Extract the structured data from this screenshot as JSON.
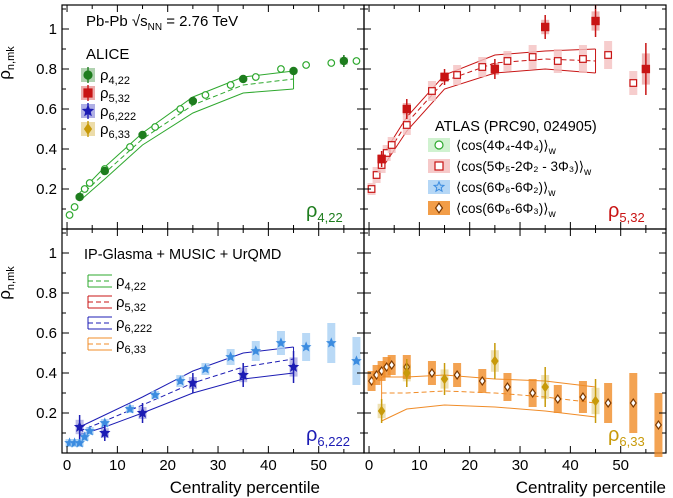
{
  "figure": {
    "y_axis_label": "ρ",
    "y_axis_sub": "n,mk",
    "x_axis_label": "Centrality percentile",
    "collision": "Pb-Pb",
    "energy_prefix": "√s",
    "energy_sub": "NN",
    "energy_value": "= 2.76 TeV",
    "alice_label": "ALICE",
    "atlas_label": "ATLAS (PRC90, 024905)",
    "model_label": "IP-Glasma + MUSIC + UrQMD"
  },
  "alice_legend": [
    {
      "base": "ρ",
      "sub": "4,22",
      "color": "#1e7d1e",
      "marker": "circle"
    },
    {
      "base": "ρ",
      "sub": "5,32",
      "color": "#c81414",
      "marker": "square"
    },
    {
      "base": "ρ",
      "sub": "6,222",
      "color": "#1c1cb4",
      "marker": "star"
    },
    {
      "base": "ρ",
      "sub": "6,33",
      "color": "#c89a0a",
      "marker": "diamond"
    }
  ],
  "atlas_legend": [
    {
      "text": "⟨cos(4Φ₄-4Φ₄)⟩",
      "sub": "w",
      "marker": "circle",
      "color": "#2ea82e",
      "fill": "#c8f0c8"
    },
    {
      "text": "⟨cos(5Φ₅-2Φ₂ - 3Φ₃)⟩",
      "sub": "w",
      "marker": "square",
      "color": "#c81414",
      "fill": "#f4c0c0"
    },
    {
      "text": "⟨cos(6Φ₆-6Φ₂)⟩",
      "sub": "w",
      "marker": "star",
      "color": "#3c8ce0",
      "fill": "#a8d0f4"
    },
    {
      "text": "⟨cos(6Φ₆-6Φ₃)⟩",
      "sub": "w",
      "marker": "diamond",
      "color": "#7a3800",
      "fill": "#f08c28"
    }
  ],
  "model_legend": [
    {
      "base": "ρ",
      "sub": "4,22",
      "color": "#2ea82e"
    },
    {
      "base": "ρ",
      "sub": "5,32",
      "color": "#c81414"
    },
    {
      "base": "ρ",
      "sub": "6,222",
      "color": "#1c1cb4"
    },
    {
      "base": "ρ",
      "sub": "6,33",
      "color": "#f08c28"
    }
  ],
  "chart_data": [
    {
      "type": "scatter",
      "panel": "top-left",
      "label_base": "ρ",
      "label_sub": "4,22",
      "label_color": "#1e7d1e",
      "xlim": [
        -1,
        59
      ],
      "ylim": [
        0,
        1.12
      ],
      "x_ticks": [
        0,
        10,
        20,
        30,
        40,
        50
      ],
      "y_ticks": [
        0.2,
        0.4,
        0.6,
        0.8,
        1
      ],
      "colors": {
        "alice": "#1e7d1e",
        "atlas": "#2ea82e",
        "atlas_fill": "#c8f0c8",
        "model": "#2ea82e"
      },
      "alice": [
        {
          "x": 2.5,
          "y": 0.16,
          "err": 0.02
        },
        {
          "x": 7.5,
          "y": 0.29,
          "err": 0.02
        },
        {
          "x": 15,
          "y": 0.47,
          "err": 0.02
        },
        {
          "x": 25,
          "y": 0.64,
          "err": 0.02
        },
        {
          "x": 35,
          "y": 0.75,
          "err": 0.02
        },
        {
          "x": 45,
          "y": 0.79,
          "err": 0.02
        },
        {
          "x": 55,
          "y": 0.84,
          "err": 0.03
        }
      ],
      "atlas": [
        {
          "x": 0.5,
          "y": 0.07,
          "sys": 0.01
        },
        {
          "x": 1.5,
          "y": 0.11,
          "sys": 0.01
        },
        {
          "x": 2.5,
          "y": 0.16,
          "sys": 0.01
        },
        {
          "x": 3.5,
          "y": 0.2,
          "sys": 0.01
        },
        {
          "x": 4.5,
          "y": 0.23,
          "sys": 0.01
        },
        {
          "x": 7.5,
          "y": 0.3,
          "sys": 0.01
        },
        {
          "x": 12.5,
          "y": 0.41,
          "sys": 0.01
        },
        {
          "x": 17.5,
          "y": 0.51,
          "sys": 0.01
        },
        {
          "x": 22.5,
          "y": 0.6,
          "sys": 0.01
        },
        {
          "x": 27.5,
          "y": 0.67,
          "sys": 0.01
        },
        {
          "x": 32.5,
          "y": 0.72,
          "sys": 0.01
        },
        {
          "x": 37.5,
          "y": 0.76,
          "sys": 0.01
        },
        {
          "x": 42.5,
          "y": 0.8,
          "sys": 0.01
        },
        {
          "x": 47.5,
          "y": 0.82,
          "sys": 0.01
        },
        {
          "x": 52.5,
          "y": 0.83,
          "sys": 0.01
        },
        {
          "x": 57.5,
          "y": 0.84,
          "sys": 0.01
        }
      ],
      "model": {
        "x": [
          2.5,
          7.5,
          15,
          25,
          35,
          45
        ],
        "center": [
          0.16,
          0.28,
          0.45,
          0.62,
          0.72,
          0.75
        ],
        "upper": [
          0.18,
          0.31,
          0.48,
          0.66,
          0.76,
          0.79
        ],
        "lower": [
          0.14,
          0.25,
          0.42,
          0.58,
          0.68,
          0.7
        ]
      }
    },
    {
      "type": "scatter",
      "panel": "top-right",
      "label_base": "ρ",
      "label_sub": "5,32",
      "label_color": "#c81414",
      "xlim": [
        -1,
        59
      ],
      "ylim": [
        0,
        1.12
      ],
      "x_ticks": [
        0,
        10,
        20,
        30,
        40,
        50
      ],
      "y_ticks": [
        0.2,
        0.4,
        0.6,
        0.8,
        1
      ],
      "colors": {
        "alice": "#c81414",
        "atlas": "#c81414",
        "atlas_fill": "#f4c0c0",
        "model": "#c81414"
      },
      "alice": [
        {
          "x": 2.5,
          "y": 0.35,
          "err": 0.04
        },
        {
          "x": 7.5,
          "y": 0.6,
          "err": 0.05
        },
        {
          "x": 15,
          "y": 0.76,
          "err": 0.04
        },
        {
          "x": 25,
          "y": 0.8,
          "err": 0.05
        },
        {
          "x": 35,
          "y": 1.01,
          "err": 0.06
        },
        {
          "x": 45,
          "y": 1.04,
          "err": 0.08
        },
        {
          "x": 55,
          "y": 0.8,
          "err": 0.13
        }
      ],
      "atlas": [
        {
          "x": 0.5,
          "y": 0.2,
          "sys": 0.03
        },
        {
          "x": 1.5,
          "y": 0.27,
          "sys": 0.04
        },
        {
          "x": 2.5,
          "y": 0.32,
          "sys": 0.04
        },
        {
          "x": 3.5,
          "y": 0.38,
          "sys": 0.04
        },
        {
          "x": 4.5,
          "y": 0.42,
          "sys": 0.04
        },
        {
          "x": 7.5,
          "y": 0.52,
          "sys": 0.05
        },
        {
          "x": 12.5,
          "y": 0.69,
          "sys": 0.05
        },
        {
          "x": 17.5,
          "y": 0.77,
          "sys": 0.05
        },
        {
          "x": 22.5,
          "y": 0.81,
          "sys": 0.05
        },
        {
          "x": 27.5,
          "y": 0.84,
          "sys": 0.05
        },
        {
          "x": 32.5,
          "y": 0.86,
          "sys": 0.06
        },
        {
          "x": 37.5,
          "y": 0.84,
          "sys": 0.06
        },
        {
          "x": 42.5,
          "y": 0.85,
          "sys": 0.07
        },
        {
          "x": 47.5,
          "y": 0.87,
          "sys": 0.07
        },
        {
          "x": 52.5,
          "y": 0.73,
          "sys": 0.06
        }
      ],
      "model": {
        "x": [
          2.5,
          7.5,
          15,
          25,
          35,
          45
        ],
        "center": [
          0.33,
          0.53,
          0.74,
          0.83,
          0.85,
          0.84
        ],
        "upper": [
          0.36,
          0.56,
          0.77,
          0.87,
          0.89,
          0.9
        ],
        "lower": [
          0.3,
          0.49,
          0.7,
          0.78,
          0.8,
          0.78
        ]
      }
    },
    {
      "type": "scatter",
      "panel": "bottom-left",
      "label_base": "ρ",
      "label_sub": "6,222",
      "label_color": "#1c1cb4",
      "xlim": [
        -1,
        59
      ],
      "ylim": [
        0,
        1.12
      ],
      "x_ticks": [
        0,
        10,
        20,
        30,
        40,
        50
      ],
      "y_ticks": [
        0.2,
        0.4,
        0.6,
        0.8,
        1
      ],
      "colors": {
        "alice": "#1c1cb4",
        "atlas": "#3c8ce0",
        "atlas_fill": "#a8d0f4",
        "model": "#1c1cb4"
      },
      "alice": [
        {
          "x": 2.5,
          "y": 0.13,
          "err": 0.06
        },
        {
          "x": 7.5,
          "y": 0.1,
          "err": 0.04
        },
        {
          "x": 15,
          "y": 0.2,
          "err": 0.05
        },
        {
          "x": 25,
          "y": 0.35,
          "err": 0.05
        },
        {
          "x": 35,
          "y": 0.39,
          "err": 0.06
        },
        {
          "x": 45,
          "y": 0.43,
          "err": 0.08
        }
      ],
      "atlas": [
        {
          "x": 0.5,
          "y": 0.05,
          "sys": 0.02
        },
        {
          "x": 1.5,
          "y": 0.05,
          "sys": 0.02
        },
        {
          "x": 2.5,
          "y": 0.05,
          "sys": 0.02
        },
        {
          "x": 3.5,
          "y": 0.08,
          "sys": 0.02
        },
        {
          "x": 4.5,
          "y": 0.11,
          "sys": 0.02
        },
        {
          "x": 7.5,
          "y": 0.15,
          "sys": 0.02
        },
        {
          "x": 12.5,
          "y": 0.22,
          "sys": 0.02
        },
        {
          "x": 17.5,
          "y": 0.29,
          "sys": 0.02
        },
        {
          "x": 22.5,
          "y": 0.36,
          "sys": 0.03
        },
        {
          "x": 27.5,
          "y": 0.42,
          "sys": 0.03
        },
        {
          "x": 32.5,
          "y": 0.48,
          "sys": 0.04
        },
        {
          "x": 37.5,
          "y": 0.51,
          "sys": 0.05
        },
        {
          "x": 42.5,
          "y": 0.55,
          "sys": 0.06
        },
        {
          "x": 47.5,
          "y": 0.53,
          "sys": 0.07
        },
        {
          "x": 52.5,
          "y": 0.55,
          "sys": 0.1
        },
        {
          "x": 57.5,
          "y": 0.46,
          "sys": 0.12
        }
      ],
      "model": {
        "x": [
          2.5,
          7.5,
          15,
          25,
          35,
          45
        ],
        "center": [
          0.11,
          0.16,
          0.24,
          0.35,
          0.43,
          0.47
        ],
        "upper": [
          0.13,
          0.19,
          0.28,
          0.41,
          0.5,
          0.53
        ],
        "lower": [
          0.09,
          0.13,
          0.2,
          0.3,
          0.37,
          0.4
        ]
      }
    },
    {
      "type": "scatter",
      "panel": "bottom-right",
      "label_base": "ρ",
      "label_sub": "6,33",
      "label_color": "#c89a0a",
      "xlim": [
        -1,
        59
      ],
      "ylim": [
        0,
        1.12
      ],
      "x_ticks": [
        0,
        10,
        20,
        30,
        40,
        50
      ],
      "y_ticks": [
        0.2,
        0.4,
        0.6,
        0.8,
        1
      ],
      "colors": {
        "alice": "#c89a0a",
        "atlas": "#7a3800",
        "atlas_fill": "#f08c28",
        "model": "#f08c28"
      },
      "alice": [
        {
          "x": 2.5,
          "y": 0.21,
          "err": 0.06
        },
        {
          "x": 7.5,
          "y": 0.4,
          "err": 0.07
        },
        {
          "x": 15,
          "y": 0.37,
          "err": 0.08
        },
        {
          "x": 25,
          "y": 0.46,
          "err": 0.09
        },
        {
          "x": 35,
          "y": 0.33,
          "err": 0.1
        },
        {
          "x": 45,
          "y": 0.26,
          "err": 0.11
        }
      ],
      "atlas": [
        {
          "x": 0.5,
          "y": 0.36,
          "sys": 0.05
        },
        {
          "x": 1.5,
          "y": 0.39,
          "sys": 0.05
        },
        {
          "x": 2.5,
          "y": 0.41,
          "sys": 0.05
        },
        {
          "x": 3.5,
          "y": 0.43,
          "sys": 0.05
        },
        {
          "x": 4.5,
          "y": 0.44,
          "sys": 0.05
        },
        {
          "x": 7.5,
          "y": 0.43,
          "sys": 0.06
        },
        {
          "x": 12.5,
          "y": 0.4,
          "sys": 0.06
        },
        {
          "x": 17.5,
          "y": 0.39,
          "sys": 0.06
        },
        {
          "x": 22.5,
          "y": 0.36,
          "sys": 0.06
        },
        {
          "x": 27.5,
          "y": 0.33,
          "sys": 0.07
        },
        {
          "x": 32.5,
          "y": 0.3,
          "sys": 0.07
        },
        {
          "x": 37.5,
          "y": 0.27,
          "sys": 0.07
        },
        {
          "x": 42.5,
          "y": 0.28,
          "sys": 0.08
        },
        {
          "x": 47.5,
          "y": 0.25,
          "sys": 0.1
        },
        {
          "x": 52.5,
          "y": 0.25,
          "sys": 0.15
        },
        {
          "x": 57.5,
          "y": 0.14,
          "sys": 0.16
        }
      ],
      "model": {
        "x": [
          2.5,
          7.5,
          15,
          25,
          35,
          45
        ],
        "center": [
          0.3,
          0.3,
          0.31,
          0.3,
          0.28,
          0.25
        ],
        "upper": [
          0.38,
          0.38,
          0.39,
          0.37,
          0.36,
          0.33
        ],
        "lower": [
          0.16,
          0.22,
          0.24,
          0.23,
          0.21,
          0.18
        ]
      }
    }
  ]
}
